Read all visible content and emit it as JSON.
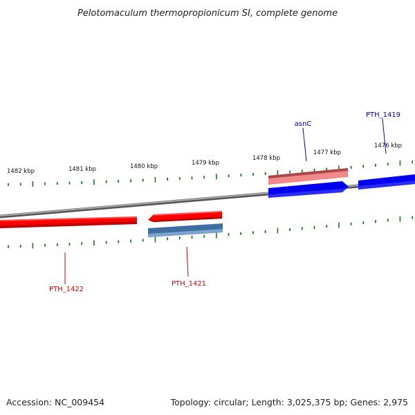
{
  "title": "Pelotomaculum thermopropionicum SI, complete genome",
  "footer": {
    "accession": "Accession: NC_009454",
    "topology": "Topology: circular; Length: 3,025,375 bp; Genes: 2,975"
  },
  "colors": {
    "backbone": "#808080",
    "tick": "#1a7a1a",
    "gene_red": "#ee1111",
    "gene_red_label": "#cc0000",
    "gene_pink": "#ee8888",
    "gene_blue": "#0000ee",
    "gene_blue_label": "#0000aa",
    "gene_steel": "#3d6fa3"
  },
  "ruler": {
    "labels": [
      "1482 kbp",
      "1481 kbp",
      "1480 kbp",
      "1479 kbp",
      "1478 kbp",
      "1477 kbp",
      "1476 kbp"
    ]
  },
  "genes": [
    {
      "name": "PTH_1422",
      "strand": "-",
      "color": "gene_red",
      "labeled": true
    },
    {
      "name": "PTH_1421",
      "strand": "-",
      "color": "gene_red",
      "labeled": true
    },
    {
      "name": "PTH_1421_cds",
      "strand": "-",
      "color": "gene_steel",
      "labeled": false
    },
    {
      "name": "asnC",
      "strand": "+",
      "color": "gene_pink",
      "labeled": true
    },
    {
      "name": "asnC_cds",
      "strand": "+",
      "color": "gene_blue",
      "labeled": false
    },
    {
      "name": "PTH_1419",
      "strand": "+",
      "color": "gene_blue",
      "labeled": true
    }
  ]
}
